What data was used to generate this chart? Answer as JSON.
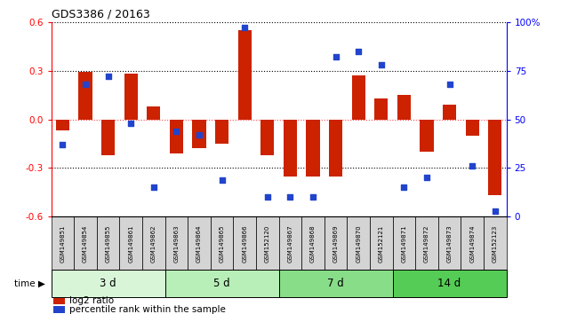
{
  "title": "GDS3386 / 20163",
  "samples": [
    "GSM149851",
    "GSM149854",
    "GSM149855",
    "GSM149861",
    "GSM149862",
    "GSM149863",
    "GSM149864",
    "GSM149865",
    "GSM149866",
    "GSM152120",
    "GSM149867",
    "GSM149868",
    "GSM149869",
    "GSM149870",
    "GSM152121",
    "GSM149871",
    "GSM149872",
    "GSM149873",
    "GSM149874",
    "GSM152123"
  ],
  "log2_ratio": [
    -0.07,
    0.29,
    -0.22,
    0.28,
    0.08,
    -0.21,
    -0.18,
    -0.15,
    0.55,
    -0.22,
    -0.35,
    -0.35,
    -0.35,
    0.27,
    0.13,
    0.15,
    -0.2,
    0.09,
    -0.1,
    -0.47
  ],
  "percentile": [
    37,
    68,
    72,
    48,
    15,
    44,
    42,
    19,
    97,
    10,
    10,
    10,
    82,
    85,
    78,
    15,
    20,
    68,
    26,
    3
  ],
  "groups": [
    {
      "label": "3 d",
      "start": 0,
      "end": 5,
      "color": "#d8f5d8"
    },
    {
      "label": "5 d",
      "start": 5,
      "end": 10,
      "color": "#b8efb8"
    },
    {
      "label": "7 d",
      "start": 10,
      "end": 15,
      "color": "#88dd88"
    },
    {
      "label": "14 d",
      "start": 15,
      "end": 20,
      "color": "#55cc55"
    }
  ],
  "bar_color": "#cc2200",
  "dot_color": "#2244cc",
  "ylim_left": [
    -0.6,
    0.6
  ],
  "ylim_right": [
    0,
    100
  ],
  "yticks_left": [
    -0.6,
    -0.3,
    0.0,
    0.3,
    0.6
  ],
  "yticks_right": [
    0,
    25,
    50,
    75,
    100
  ],
  "ytick_labels_right": [
    "0",
    "25",
    "50",
    "75",
    "100%"
  ],
  "zero_line_color": "#ff4444",
  "grid_color": "#000000",
  "label_bg": "#d4d4d4",
  "background_color": "#ffffff"
}
